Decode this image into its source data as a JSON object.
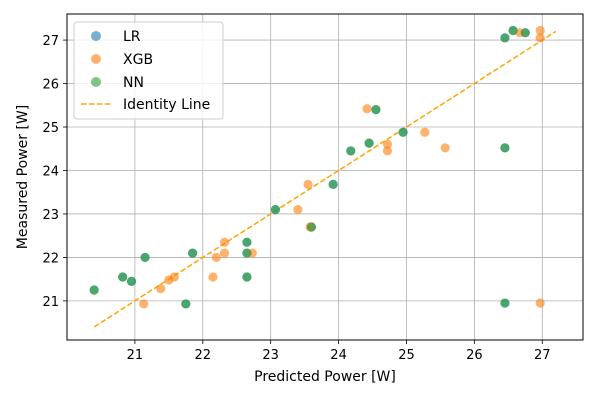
{
  "chart_data": {
    "type": "scatter",
    "xlabel": "Predicted Power [W]",
    "ylabel": "Measured Power [W]",
    "xlim": [
      20.0,
      27.6
    ],
    "ylim": [
      20.1,
      27.6
    ],
    "xticks": [
      21,
      22,
      23,
      24,
      25,
      26,
      27
    ],
    "yticks": [
      21,
      22,
      23,
      24,
      25,
      26,
      27
    ],
    "grid": true,
    "legend_position": "top-left",
    "legend": [
      "LR",
      "XGB",
      "NN",
      "Identity Line"
    ],
    "identity_line": {
      "name": "Identity Line",
      "x": [
        20.4,
        27.2
      ],
      "y": [
        20.4,
        27.2
      ],
      "color": "#ffa500",
      "style": "dashed"
    },
    "series": [
      {
        "name": "LR",
        "color": "#1f77b4",
        "points": [
          [
            20.4,
            21.25
          ],
          [
            20.82,
            21.55
          ],
          [
            20.95,
            21.45
          ],
          [
            21.15,
            22.0
          ],
          [
            21.75,
            20.93
          ],
          [
            21.85,
            22.1
          ],
          [
            22.65,
            22.35
          ],
          [
            22.65,
            22.1
          ],
          [
            22.65,
            21.55
          ],
          [
            23.07,
            23.1
          ],
          [
            23.6,
            22.7
          ],
          [
            23.92,
            23.68
          ],
          [
            24.18,
            24.45
          ],
          [
            24.45,
            24.63
          ],
          [
            24.55,
            25.4
          ],
          [
            24.95,
            24.88
          ],
          [
            26.45,
            27.05
          ],
          [
            26.57,
            27.22
          ],
          [
            26.75,
            27.17
          ],
          [
            26.45,
            24.52
          ],
          [
            26.45,
            20.95
          ]
        ]
      },
      {
        "name": "XGB",
        "color": "#ff7f0e",
        "points": [
          [
            21.13,
            20.93
          ],
          [
            21.38,
            21.28
          ],
          [
            21.5,
            21.48
          ],
          [
            21.58,
            21.55
          ],
          [
            22.15,
            21.55
          ],
          [
            22.2,
            22.0
          ],
          [
            22.32,
            22.35
          ],
          [
            22.32,
            22.1
          ],
          [
            22.73,
            22.1
          ],
          [
            23.4,
            23.1
          ],
          [
            23.55,
            23.68
          ],
          [
            23.58,
            22.7
          ],
          [
            24.42,
            25.42
          ],
          [
            24.72,
            24.6
          ],
          [
            24.72,
            24.45
          ],
          [
            25.27,
            24.88
          ],
          [
            25.57,
            24.52
          ],
          [
            26.67,
            27.17
          ],
          [
            26.97,
            27.22
          ],
          [
            26.97,
            27.05
          ],
          [
            26.97,
            20.95
          ]
        ]
      },
      {
        "name": "NN",
        "color": "#2ca02c",
        "points": [
          [
            20.4,
            21.25
          ],
          [
            20.82,
            21.55
          ],
          [
            20.95,
            21.45
          ],
          [
            21.15,
            22.0
          ],
          [
            21.75,
            20.93
          ],
          [
            21.85,
            22.1
          ],
          [
            22.65,
            22.35
          ],
          [
            22.65,
            22.1
          ],
          [
            22.65,
            21.55
          ],
          [
            23.07,
            23.1
          ],
          [
            23.6,
            22.7
          ],
          [
            23.92,
            23.68
          ],
          [
            24.18,
            24.45
          ],
          [
            24.45,
            24.63
          ],
          [
            24.55,
            25.4
          ],
          [
            24.95,
            24.88
          ],
          [
            26.45,
            27.05
          ],
          [
            26.57,
            27.22
          ],
          [
            26.75,
            27.17
          ],
          [
            26.45,
            24.52
          ],
          [
            26.45,
            20.95
          ]
        ]
      }
    ]
  }
}
